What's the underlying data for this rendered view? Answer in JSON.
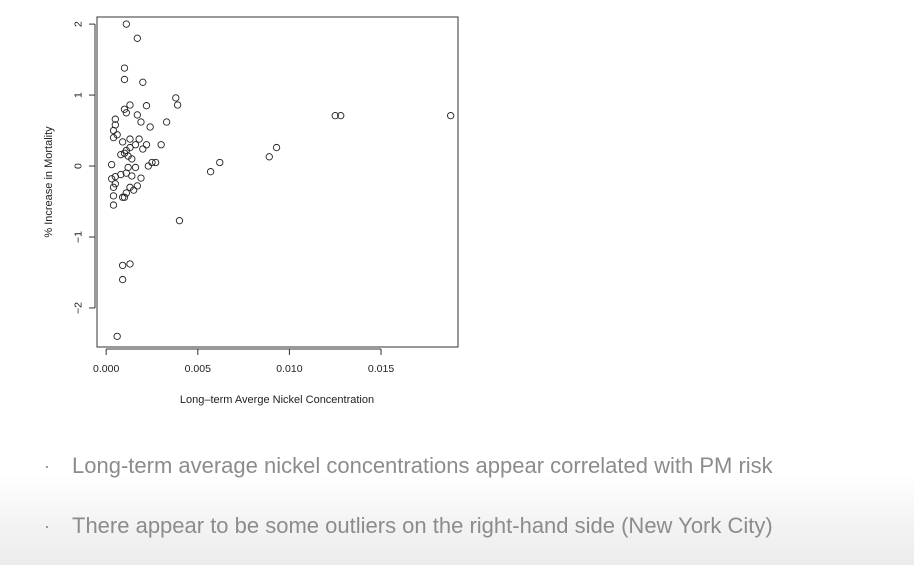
{
  "chart_data": {
    "type": "scatter",
    "title": "",
    "xlabel": "Long–term Averge Nickel Concentration",
    "ylabel": "% Increase in Mortality",
    "xlim": [
      -0.0005,
      0.0192
    ],
    "ylim": [
      -2.55,
      2.1
    ],
    "xticks": [
      0.0,
      0.005,
      0.01,
      0.015
    ],
    "xtick_labels": [
      "0.000",
      "0.005",
      "0.010",
      "0.015"
    ],
    "yticks": [
      -2,
      -1,
      0,
      1,
      2
    ],
    "ytick_labels": [
      "−2",
      "−1",
      "0",
      "1",
      "2"
    ],
    "grid": false,
    "points": [
      [
        0.0011,
        2.0
      ],
      [
        0.0017,
        1.8
      ],
      [
        0.001,
        1.38
      ],
      [
        0.001,
        1.22
      ],
      [
        0.002,
        1.18
      ],
      [
        0.0038,
        0.96
      ],
      [
        0.0039,
        0.86
      ],
      [
        0.0013,
        0.86
      ],
      [
        0.0022,
        0.85
      ],
      [
        0.001,
        0.8
      ],
      [
        0.0011,
        0.75
      ],
      [
        0.0017,
        0.72
      ],
      [
        0.0005,
        0.66
      ],
      [
        0.0019,
        0.62
      ],
      [
        0.0033,
        0.62
      ],
      [
        0.0005,
        0.58
      ],
      [
        0.0024,
        0.55
      ],
      [
        0.0004,
        0.5
      ],
      [
        0.0006,
        0.44
      ],
      [
        0.0004,
        0.4
      ],
      [
        0.0013,
        0.38
      ],
      [
        0.0018,
        0.38
      ],
      [
        0.0009,
        0.34
      ],
      [
        0.0016,
        0.3
      ],
      [
        0.0022,
        0.3
      ],
      [
        0.003,
        0.3
      ],
      [
        0.0013,
        0.26
      ],
      [
        0.002,
        0.24
      ],
      [
        0.0011,
        0.22
      ],
      [
        0.001,
        0.18
      ],
      [
        0.0012,
        0.14
      ],
      [
        0.0008,
        0.16
      ],
      [
        0.0014,
        0.1
      ],
      [
        0.0025,
        0.05
      ],
      [
        0.0027,
        0.05
      ],
      [
        0.0023,
        0.0
      ],
      [
        0.0003,
        0.02
      ],
      [
        0.0012,
        -0.02
      ],
      [
        0.0016,
        -0.02
      ],
      [
        0.0011,
        -0.1
      ],
      [
        0.0008,
        -0.12
      ],
      [
        0.0014,
        -0.14
      ],
      [
        0.0005,
        -0.15
      ],
      [
        0.0003,
        -0.18
      ],
      [
        0.0019,
        -0.17
      ],
      [
        0.0005,
        -0.25
      ],
      [
        0.0004,
        -0.3
      ],
      [
        0.0013,
        -0.3
      ],
      [
        0.0017,
        -0.28
      ],
      [
        0.0015,
        -0.34
      ],
      [
        0.0011,
        -0.38
      ],
      [
        0.0004,
        -0.42
      ],
      [
        0.001,
        -0.44
      ],
      [
        0.0009,
        -0.44
      ],
      [
        0.0004,
        -0.55
      ],
      [
        0.004,
        -0.77
      ],
      [
        0.0009,
        -1.4
      ],
      [
        0.0013,
        -1.38
      ],
      [
        0.0009,
        -1.6
      ],
      [
        0.0006,
        -2.4
      ],
      [
        0.0057,
        -0.08
      ],
      [
        0.0062,
        0.05
      ],
      [
        0.0089,
        0.13
      ],
      [
        0.0093,
        0.26
      ],
      [
        0.0125,
        0.71
      ],
      [
        0.0128,
        0.71
      ],
      [
        0.0188,
        0.71
      ]
    ]
  },
  "bullets": [
    "Long-term average nickel concentrations appear correlated with PM risk",
    "There appear to be some outliers on the right-hand side (New York City)"
  ]
}
